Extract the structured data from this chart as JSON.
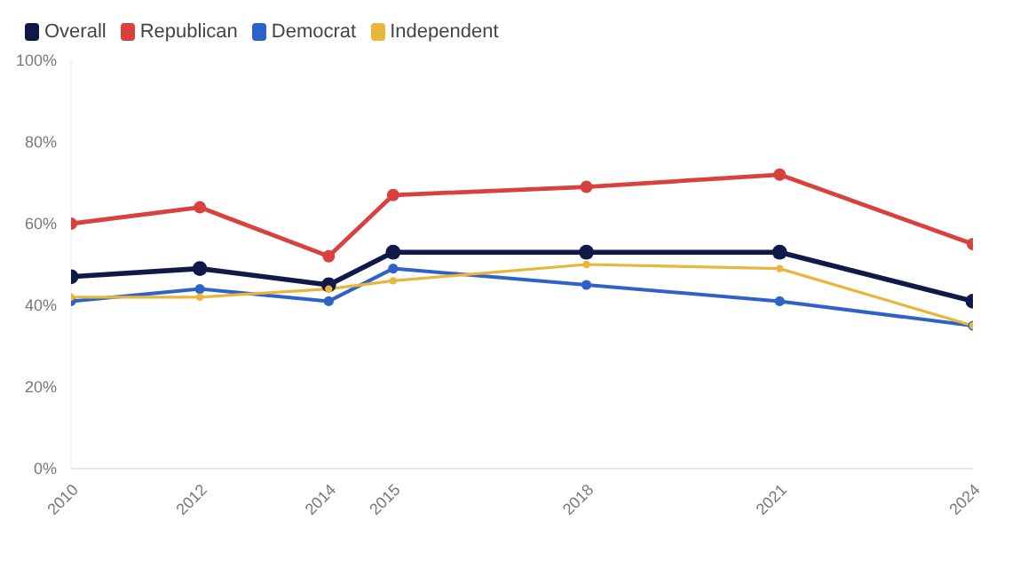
{
  "chart_data": {
    "type": "line",
    "x": [
      2010,
      2012,
      2014,
      2015,
      2018,
      2021,
      2024
    ],
    "series": [
      {
        "name": "Overall",
        "color": "#0f1a4a",
        "values": [
          47,
          49,
          45,
          53,
          53,
          53,
          41
        ]
      },
      {
        "name": "Republican",
        "color": "#d9413e",
        "values": [
          60,
          64,
          52,
          67,
          69,
          72,
          55
        ]
      },
      {
        "name": "Democrat",
        "color": "#2f62c8",
        "values": [
          41,
          44,
          41,
          49,
          45,
          41,
          35
        ]
      },
      {
        "name": "Independent",
        "color": "#e8b63c",
        "values": [
          42,
          42,
          44,
          46,
          50,
          49,
          35
        ]
      }
    ],
    "xlim": [
      2010,
      2024
    ],
    "xticks": [
      2010,
      2012,
      2014,
      2015,
      2018,
      2021,
      2024
    ],
    "ylim": [
      0,
      100
    ],
    "yticks": [
      {
        "value": 0,
        "label": "0%"
      },
      {
        "value": 20,
        "label": "20%"
      },
      {
        "value": 40,
        "label": "40%"
      },
      {
        "value": 60,
        "label": "60%"
      },
      {
        "value": 80,
        "label": "80%"
      },
      {
        "value": 100,
        "label": "100%"
      }
    ],
    "grid": false,
    "legend": "top left",
    "marker": "circle",
    "line_style": "solid"
  }
}
